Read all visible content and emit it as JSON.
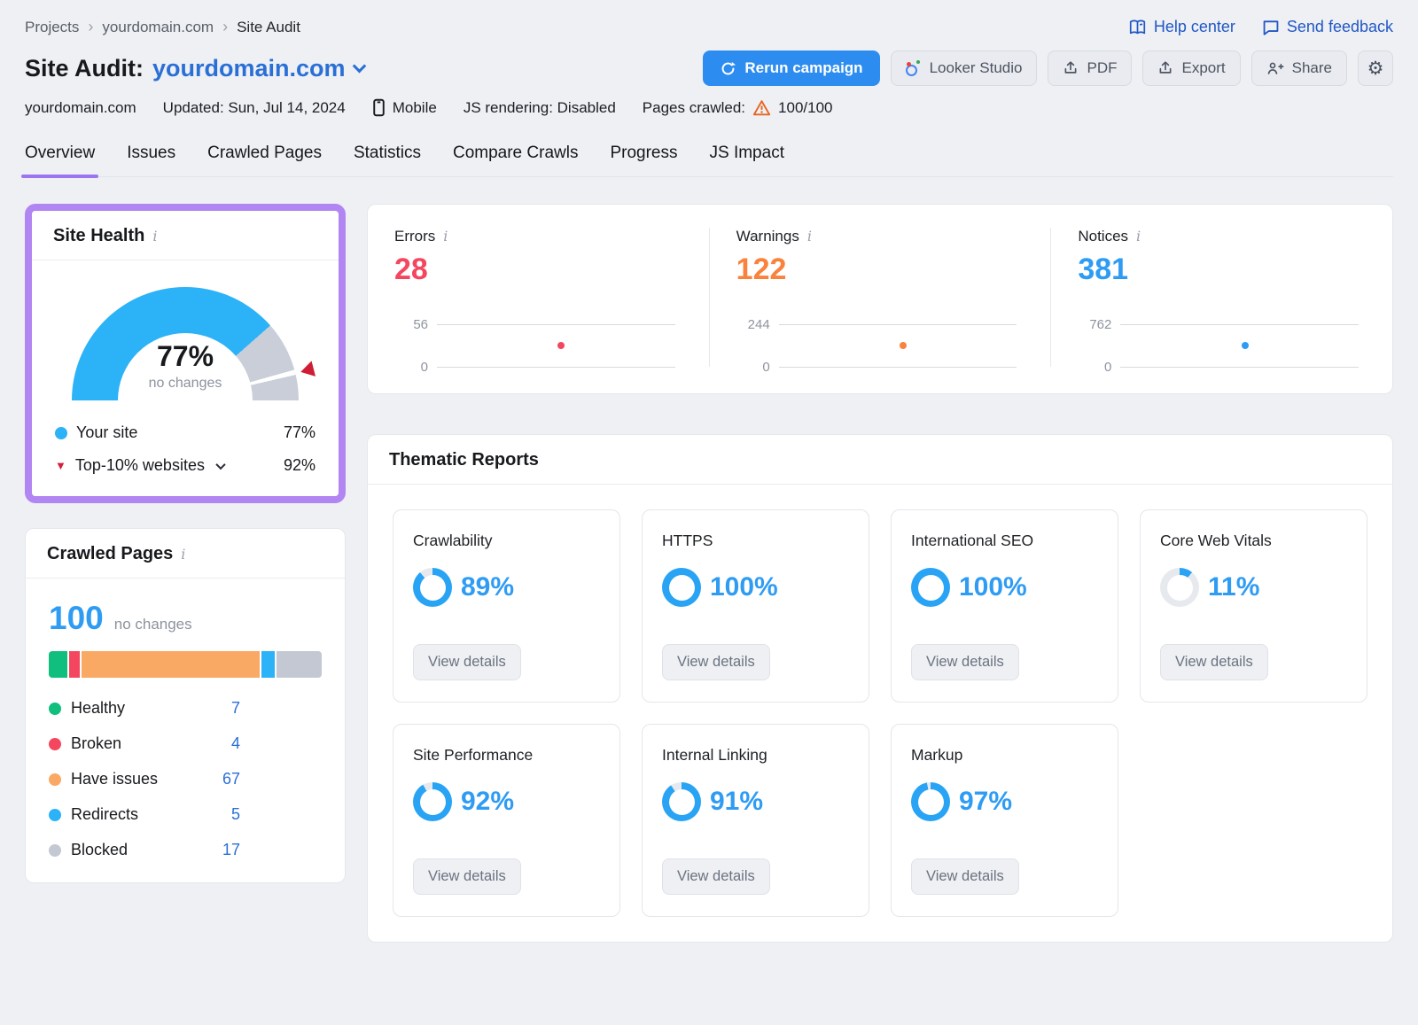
{
  "colors": {
    "accent_blue": "#2d8cf0",
    "link_blue": "#2a6fd6",
    "header_link_blue": "#2257c5",
    "highlight_purple": "#b185f2",
    "tab_underline_purple": "#9d74f0",
    "gauge_blue": "#2cb2f7",
    "gauge_gray": "#c9ced8",
    "benchmark_red": "#ce1d34",
    "donut_blue": "#29a3f4",
    "donut_track": "#e6e9ee",
    "warning_orange": "#e8641f"
  },
  "topbar": {
    "breadcrumb": [
      "Projects",
      "yourdomain.com",
      "Site Audit"
    ],
    "help_center": "Help center",
    "send_feedback": "Send feedback"
  },
  "header": {
    "title": "Site Audit:",
    "domain": "yourdomain.com",
    "rerun": "Rerun campaign",
    "looker": "Looker Studio",
    "pdf": "PDF",
    "export": "Export",
    "share": "Share"
  },
  "meta": {
    "domain": "yourdomain.com",
    "updated": "Updated: Sun, Jul 14, 2024",
    "device": "Mobile",
    "js_rendering": "JS rendering: Disabled",
    "pages_crawled_label": "Pages crawled:",
    "pages_crawled_value": "100/100"
  },
  "tabs": [
    {
      "label": "Overview",
      "active": true
    },
    {
      "label": "Issues",
      "active": false
    },
    {
      "label": "Crawled Pages",
      "active": false
    },
    {
      "label": "Statistics",
      "active": false
    },
    {
      "label": "Compare Crawls",
      "active": false
    },
    {
      "label": "Progress",
      "active": false
    },
    {
      "label": "JS Impact",
      "active": false
    }
  ],
  "site_health": {
    "title": "Site Health",
    "score_percent": 77,
    "score_label": "77%",
    "change_label": "no changes",
    "your_site_label": "Your site",
    "your_site_value": "77%",
    "benchmark_label": "Top-10% websites",
    "benchmark_value": "92%",
    "benchmark_percent": 92
  },
  "metrics": [
    {
      "label": "Errors",
      "value": "28",
      "axis_max": "56",
      "axis_min": "0",
      "color": "#f4475f"
    },
    {
      "label": "Warnings",
      "value": "122",
      "axis_max": "244",
      "axis_min": "0",
      "color": "#f9823c"
    },
    {
      "label": "Notices",
      "value": "381",
      "axis_max": "762",
      "axis_min": "0",
      "color": "#2f9cf4"
    }
  ],
  "crawled_pages": {
    "title": "Crawled Pages",
    "total": "100",
    "change_label": "no changes",
    "segments": [
      {
        "label": "Healthy",
        "value": 7,
        "color": "#10bf7e"
      },
      {
        "label": "Broken",
        "value": 4,
        "color": "#f4475f"
      },
      {
        "label": "Have issues",
        "value": 67,
        "color": "#f9a964"
      },
      {
        "label": "Redirects",
        "value": 5,
        "color": "#2cb2f7"
      },
      {
        "label": "Blocked",
        "value": 17,
        "color": "#c3c8d2"
      }
    ]
  },
  "thematic": {
    "title": "Thematic Reports",
    "view_details_label": "View details",
    "reports": [
      {
        "name": "Crawlability",
        "percent": 89
      },
      {
        "name": "HTTPS",
        "percent": 100
      },
      {
        "name": "International SEO",
        "percent": 100
      },
      {
        "name": "Core Web Vitals",
        "percent": 11
      },
      {
        "name": "Site Performance",
        "percent": 92
      },
      {
        "name": "Internal Linking",
        "percent": 91
      },
      {
        "name": "Markup",
        "percent": 97
      }
    ]
  }
}
